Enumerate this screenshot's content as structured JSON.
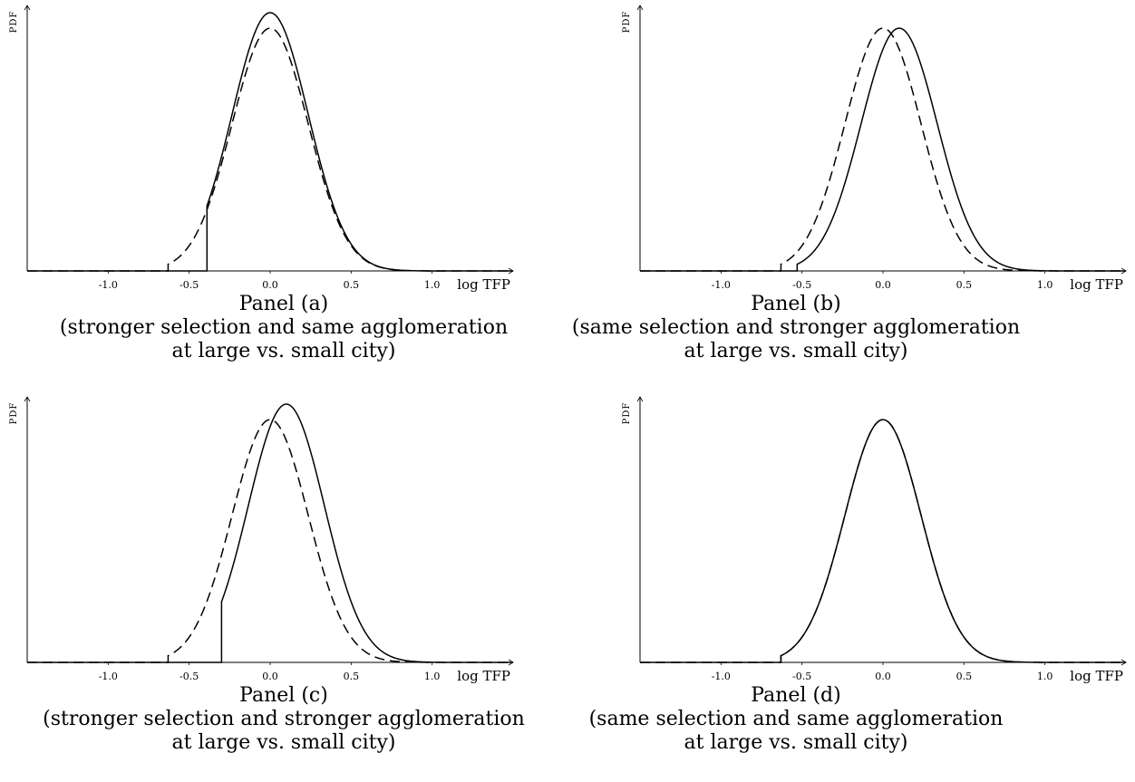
{
  "chart_data": [
    {
      "type": "line",
      "ylabel": "PDF",
      "xlabel": "log TFP",
      "xlim": [
        -1.5,
        1.5
      ],
      "xticks": [
        "-1.0",
        "-0.5",
        "0.0",
        "0.5",
        "1.0"
      ],
      "grid": false,
      "series": [
        {
          "style": "solid",
          "mu": 0.0,
          "sigma": 0.235,
          "cutoff": -0.39,
          "peak": 1.0
        },
        {
          "style": "dashed",
          "mu": 0.0,
          "sigma": 0.235,
          "cutoff": -0.63,
          "peak": 0.94
        }
      ],
      "title_lines": [
        "Panel (a)",
        "(stronger selection and same agglomeration",
        "at large vs. small city)"
      ]
    },
    {
      "type": "line",
      "ylabel": "PDF",
      "xlabel": "log TFP",
      "xlim": [
        -1.5,
        1.5
      ],
      "xticks": [
        "-1.0",
        "-0.5",
        "0.0",
        "0.5",
        "1.0"
      ],
      "grid": false,
      "series": [
        {
          "style": "solid",
          "mu": 0.1,
          "sigma": 0.235,
          "cutoff": -0.53,
          "peak": 0.94
        },
        {
          "style": "dashed",
          "mu": 0.0,
          "sigma": 0.235,
          "cutoff": -0.63,
          "peak": 0.94
        }
      ],
      "title_lines": [
        "Panel (b)",
        "(same selection and stronger agglomeration",
        "at large vs. small city)"
      ]
    },
    {
      "type": "line",
      "ylabel": "PDF",
      "xlabel": "log TFP",
      "xlim": [
        -1.5,
        1.5
      ],
      "xticks": [
        "-1.0",
        "-0.5",
        "0.0",
        "0.5",
        "1.0"
      ],
      "grid": false,
      "series": [
        {
          "style": "solid",
          "mu": 0.1,
          "sigma": 0.235,
          "cutoff": -0.3,
          "peak": 1.0
        },
        {
          "style": "dashed",
          "mu": 0.0,
          "sigma": 0.235,
          "cutoff": -0.63,
          "peak": 0.94
        }
      ],
      "title_lines": [
        "Panel (c)",
        "(stronger selection and stronger agglomeration",
        "at large vs. small city)"
      ]
    },
    {
      "type": "line",
      "ylabel": "PDF",
      "xlabel": "log TFP",
      "xlim": [
        -1.5,
        1.5
      ],
      "xticks": [
        "-1.0",
        "-0.5",
        "0.0",
        "0.5",
        "1.0"
      ],
      "grid": false,
      "series": [
        {
          "style": "solid",
          "mu": 0.0,
          "sigma": 0.235,
          "cutoff": -0.63,
          "peak": 0.94
        },
        {
          "style": "dashed",
          "mu": 0.0,
          "sigma": 0.235,
          "cutoff": -0.63,
          "peak": 0.94
        }
      ],
      "title_lines": [
        "Panel (d)",
        "(same selection and same agglomeration",
        "at large vs. small city)"
      ]
    }
  ]
}
